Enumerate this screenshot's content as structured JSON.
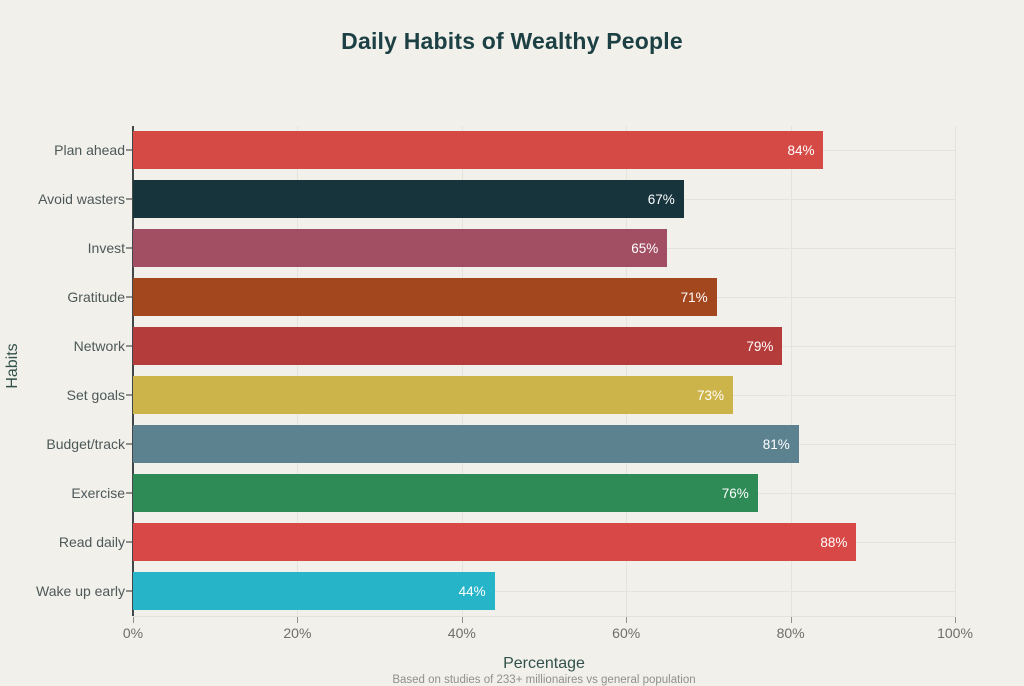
{
  "title": "Daily Habits of Wealthy People",
  "chart_data": {
    "type": "bar",
    "orientation": "horizontal",
    "title": "Daily Habits of Wealthy People",
    "categories": [
      "Plan ahead",
      "Avoid wasters",
      "Invest",
      "Gratitude",
      "Network",
      "Set goals",
      "Budget/track",
      "Exercise",
      "Read daily",
      "Wake up early"
    ],
    "values": [
      84,
      67,
      65,
      71,
      79,
      73,
      81,
      76,
      88,
      44
    ],
    "value_labels": [
      "84%",
      "67%",
      "65%",
      "71%",
      "79%",
      "73%",
      "81%",
      "76%",
      "88%",
      "44%"
    ],
    "bar_colors": [
      "#d64a46",
      "#17343c",
      "#a34f63",
      "#a3471f",
      "#b43c3a",
      "#cdb44a",
      "#5c8290",
      "#2f8b55",
      "#d84846",
      "#25b4c8"
    ],
    "xlabel": "Percentage",
    "ylabel": "Habits",
    "x_ticks": [
      "0%",
      "20%",
      "40%",
      "60%",
      "80%",
      "100%"
    ],
    "x_tick_values": [
      0,
      20,
      40,
      60,
      80,
      100
    ],
    "xlim": [
      0,
      100
    ],
    "grid": true,
    "legend": false,
    "footnote": "Based on studies of 233+ millionaires vs general population"
  },
  "colors": {
    "background": "#f1f0ea",
    "title": "#1c4044",
    "axis_title": "#32514c",
    "category_label": "#4d5859",
    "tick_label": "#6e6e6a",
    "grid_line": "#e4e3dc",
    "axis_line": "#42474a",
    "tick_mark": "#8f8f8b",
    "value_label": "#ffffff",
    "footnote": "#90908c"
  }
}
